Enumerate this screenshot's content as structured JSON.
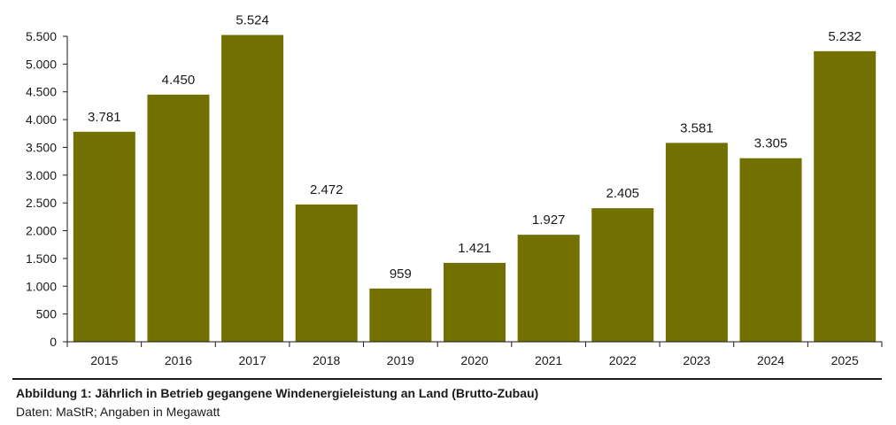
{
  "chart_data": {
    "type": "bar",
    "categories": [
      "2015",
      "2016",
      "2017",
      "2018",
      "2019",
      "2020",
      "2021",
      "2022",
      "2023",
      "2024",
      "2025"
    ],
    "values": [
      3781,
      4450,
      5524,
      2472,
      959,
      1421,
      1927,
      2405,
      3581,
      3305,
      5232
    ],
    "value_labels": [
      "3.781",
      "4.450",
      "5.524",
      "2.472",
      "959",
      "1.421",
      "1.927",
      "2.405",
      "3.581",
      "3.305",
      "5.232"
    ],
    "y_ticks": [
      0,
      500,
      1000,
      1500,
      2000,
      2500,
      3000,
      3500,
      4000,
      4500,
      5000,
      5500
    ],
    "y_tick_labels": [
      "0",
      "500",
      "1.000",
      "1.500",
      "2.000",
      "2.500",
      "3.000",
      "3.500",
      "4.000",
      "4.500",
      "5.000",
      "5.500"
    ],
    "ylim": [
      0,
      5500
    ],
    "title": "",
    "xlabel": "",
    "ylabel": "",
    "grid": false,
    "bar_color": "#727000"
  },
  "caption": {
    "title": "Abbildung 1: Jährlich in Betrieb gegangene Windenergieleistung an Land (Brutto-Zubau)",
    "source": "Daten: MaStR; Angaben in Megawatt"
  }
}
